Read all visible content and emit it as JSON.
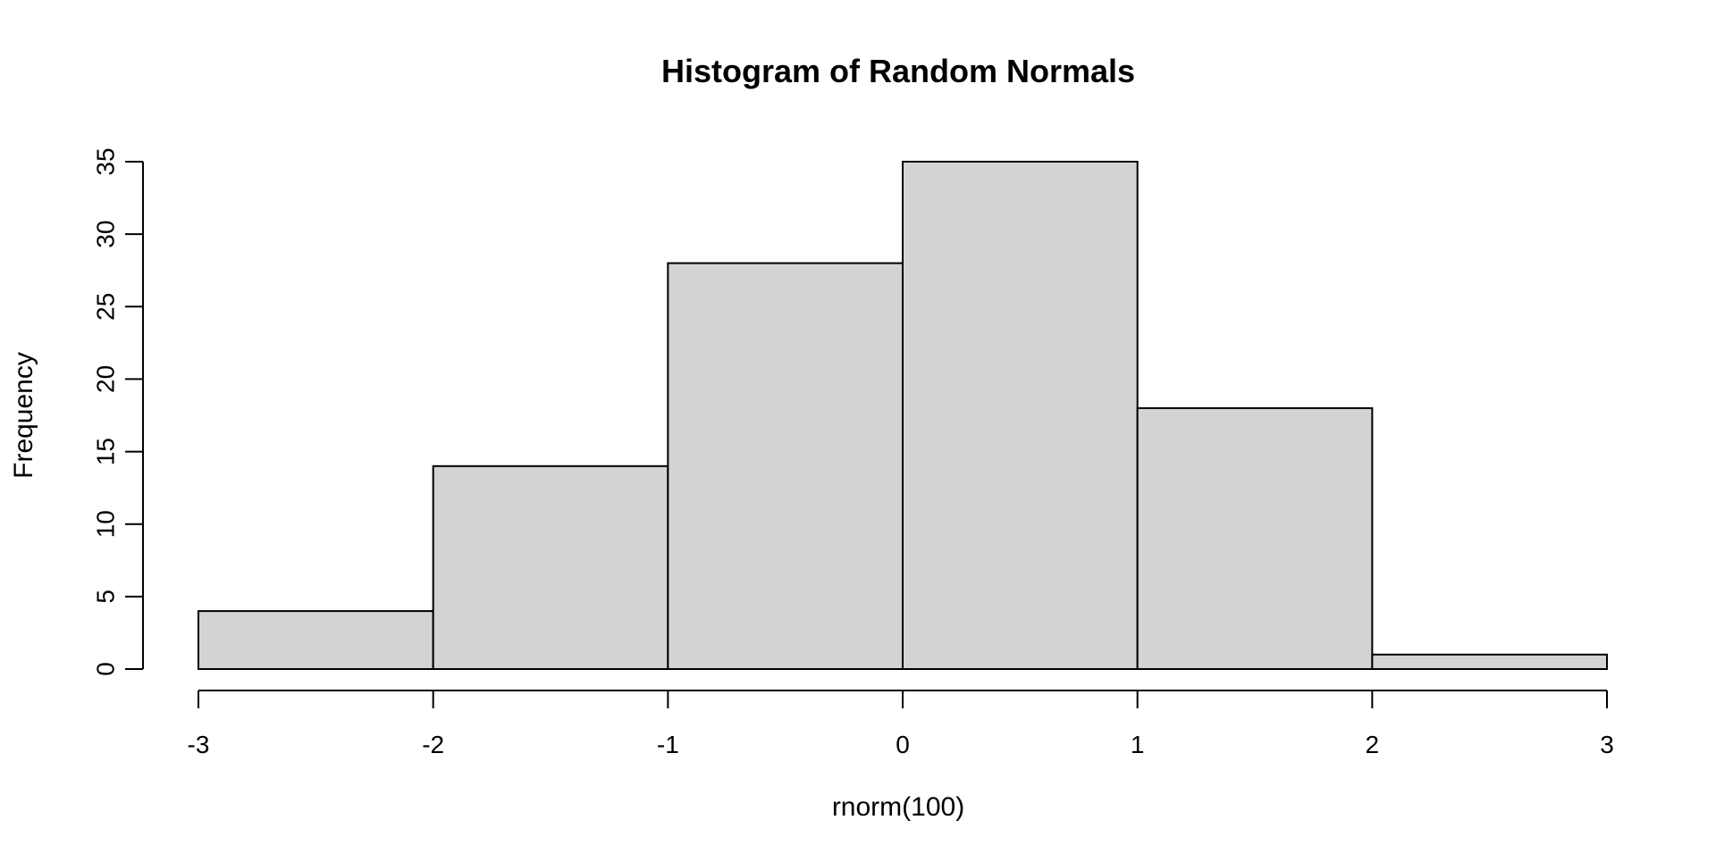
{
  "chart_data": {
    "type": "bar",
    "title": "Histogram of Random Normals",
    "xlabel": "rnorm(100)",
    "ylabel": "Frequency",
    "bin_edges": [
      -3,
      -2,
      -1,
      0,
      1,
      2,
      3
    ],
    "values": [
      4,
      14,
      28,
      35,
      18,
      1
    ],
    "xlim": [
      -3,
      3
    ],
    "ylim": [
      0,
      35
    ],
    "x_ticks": [
      -3,
      -2,
      -1,
      0,
      1,
      2,
      3
    ],
    "x_tick_labels": [
      "-3",
      "-2",
      "-1",
      "0",
      "1",
      "2",
      "3"
    ],
    "y_ticks": [
      0,
      5,
      10,
      15,
      20,
      25,
      30,
      35
    ],
    "y_tick_labels": [
      "0",
      "5",
      "10",
      "15",
      "20",
      "25",
      "30",
      "35"
    ],
    "bar_fill": "#d3d3d3",
    "bar_stroke": "#000000",
    "grid": false,
    "legend": "none"
  }
}
